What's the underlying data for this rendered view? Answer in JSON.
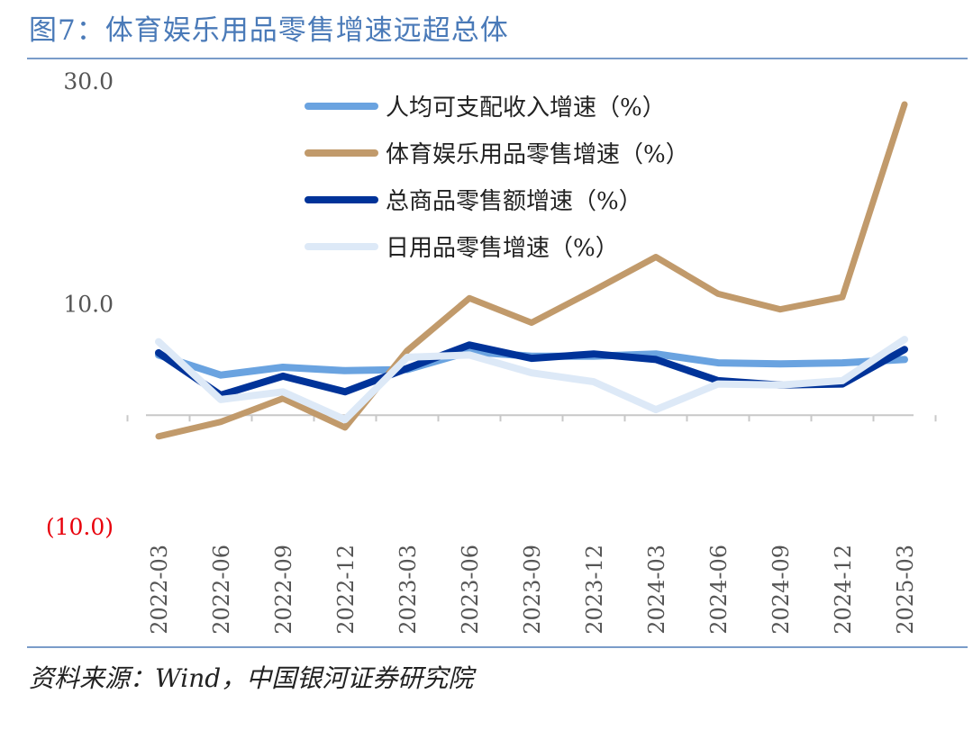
{
  "figure": {
    "title": "图7：体育娱乐用品零售增速远超总体",
    "source": "资料来源：Wind，中国银河证券研究院"
  },
  "colors": {
    "title": "#4a7ab8",
    "negative_tick": "#e8000b"
  },
  "chart_data": {
    "type": "line",
    "x": [
      "2022-03",
      "2022-06",
      "2022-09",
      "2022-12",
      "2023-03",
      "2023-06",
      "2023-09",
      "2023-12",
      "2024-03",
      "2024-06",
      "2024-09",
      "2024-12",
      "2025-03"
    ],
    "ylim": [
      -10,
      30
    ],
    "yticks": [
      30,
      10,
      -10
    ],
    "ytick_labels": [
      "30.0",
      "10.0",
      "(10.0)"
    ],
    "grid": false,
    "legend": "top",
    "series": [
      {
        "name": "人均可支配收入增速（%）",
        "color": "#6aa3e0",
        "values": [
          5.4,
          3.6,
          4.3,
          4.0,
          4.1,
          5.7,
          5.3,
          5.3,
          5.5,
          4.7,
          4.6,
          4.7,
          5.0
        ]
      },
      {
        "name": "体育娱乐用品零售增速（%）",
        "color": "#c19a6b",
        "values": [
          -1.9,
          -0.6,
          1.5,
          -1.1,
          5.8,
          10.5,
          8.3,
          11.2,
          14.2,
          10.9,
          9.5,
          10.6,
          27.9
        ]
      },
      {
        "name": "总商品零售额增速（%）",
        "color": "#003399",
        "values": [
          5.6,
          1.8,
          3.5,
          2.1,
          4.2,
          6.3,
          5.1,
          5.5,
          5.0,
          3.1,
          2.7,
          2.8,
          5.9
        ]
      },
      {
        "name": "日用品零售增速（%）",
        "color": "#dde9f7",
        "values": [
          6.6,
          1.4,
          2.1,
          -0.4,
          5.2,
          5.4,
          3.8,
          3.0,
          0.5,
          2.8,
          2.7,
          3.1,
          6.8
        ]
      }
    ]
  }
}
